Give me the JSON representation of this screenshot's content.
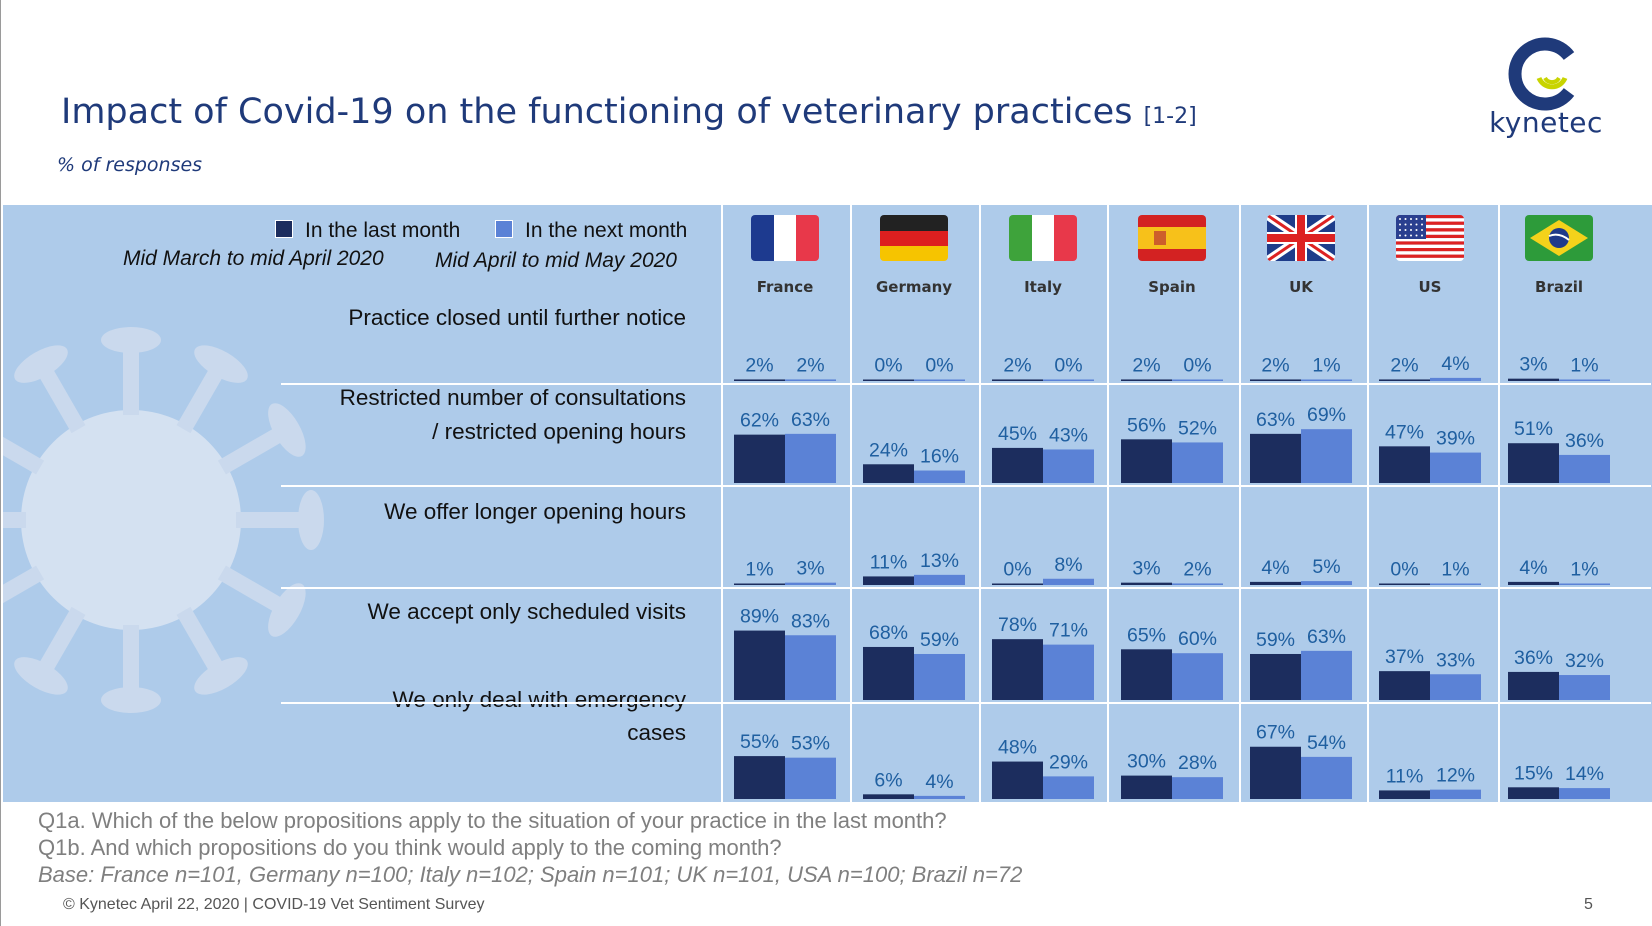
{
  "title": "Impact of Covid-19 on the functioning of veterinary practices",
  "title_ref": "[1-2]",
  "subtitle": "% of responses",
  "logo_text": "kynetec",
  "legend": {
    "last_label": "In the last month",
    "next_label": "In the next month",
    "last_period": "Mid March to mid April 2020",
    "next_period": "Mid April to mid May 2020"
  },
  "colors": {
    "last": "#1c2d5e",
    "next": "#5b82d6",
    "panel": "#aecbea",
    "value_text": "#1f5fa0",
    "title": "#1f3a7a"
  },
  "chart_data": {
    "type": "bar",
    "ylim": [
      0,
      100
    ],
    "countries": [
      "France",
      "Germany",
      "Italy",
      "Spain",
      "UK",
      "US",
      "Brazil"
    ],
    "series_names": [
      "In the last month",
      "In the next month"
    ],
    "rows": [
      {
        "label_lines": [
          "Practice closed until further notice"
        ],
        "last": [
          2,
          0,
          2,
          2,
          2,
          2,
          3
        ],
        "next": [
          2,
          0,
          0,
          0,
          1,
          4,
          1
        ]
      },
      {
        "label_lines": [
          "Restricted number of consultations",
          "/ restricted opening hours"
        ],
        "last": [
          62,
          24,
          45,
          56,
          63,
          47,
          51
        ],
        "next": [
          63,
          16,
          43,
          52,
          69,
          39,
          36
        ]
      },
      {
        "label_lines": [
          "We offer longer opening hours"
        ],
        "last": [
          1,
          11,
          0,
          3,
          4,
          0,
          4
        ],
        "next": [
          3,
          13,
          8,
          2,
          5,
          1,
          1
        ]
      },
      {
        "label_lines": [
          "We accept only scheduled visits"
        ],
        "last": [
          89,
          68,
          78,
          65,
          59,
          37,
          36
        ],
        "next": [
          83,
          59,
          71,
          60,
          63,
          33,
          32
        ]
      },
      {
        "label_lines": [
          "We only deal with emergency",
          "cases"
        ],
        "last": [
          55,
          6,
          48,
          30,
          67,
          11,
          15
        ],
        "next": [
          53,
          4,
          29,
          28,
          54,
          12,
          14
        ]
      }
    ]
  },
  "notes": {
    "q1a": "Q1a. Which of the below propositions apply to the situation of your practice in the last month?",
    "q1b": "Q1b. And which propositions do you think would apply to the coming month?",
    "base": "Base: France n=101, Germany n=100; Italy n=102; Spain n=101; UK n=101, USA n=100; Brazil n=72"
  },
  "footer": "© Kynetec April 22, 2020 | COVID-19 Vet Sentiment Survey",
  "page_number": "5"
}
